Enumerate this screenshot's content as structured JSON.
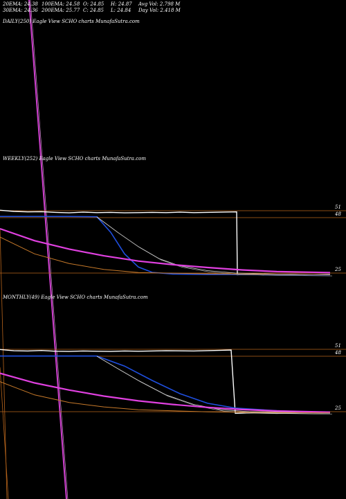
{
  "stats": {
    "ema20": "20EMA: 24.38",
    "ema30": "30EMA: 24.36",
    "ema100": "100EMA: 24.58",
    "ema200": "200EMA: 25.77",
    "open": "O: 24.85",
    "close": "C: 24.85",
    "high": "H: 24.87",
    "low": "L: 24.84",
    "avg_vol": "Avg Vol: 2.798  M",
    "day_vol": "Day Vol: 2.418  M"
  },
  "panels": {
    "daily": "DAILY(250) Eagle  View  SCHO charts MunafaSutra.com",
    "weekly": "WEEKLY(252) Eagle  View  SCHO charts MunafaSutra.com",
    "monthly": "MONTHLY(49) Eagle  View  SCHO charts MunafaSutra.com"
  },
  "colors": {
    "background": "#000000",
    "price": "#ffffff",
    "ema_fast": "#1f4fe0",
    "ema_slow": "#e040e0",
    "ema_orange": "#c87a2a",
    "level_line": "#b8651c",
    "magenta_line": "#d040d0"
  },
  "chart_data": [
    {
      "type": "line",
      "panel": "weekly",
      "title": "WEEKLY(252) Eagle  View  SCHO charts MunafaSutra.com",
      "y_ticks": [
        "51",
        "48",
        "25"
      ],
      "ylim": [
        22,
        58
      ],
      "series": [
        {
          "role": "price",
          "points": [
            [
              0,
              51.2
            ],
            [
              20,
              50.7
            ],
            [
              40,
              50.5
            ],
            [
              60,
              50.6
            ],
            [
              80,
              50.3
            ],
            [
              100,
              50.1
            ],
            [
              120,
              50.4
            ],
            [
              140,
              50.2
            ],
            [
              160,
              50.3
            ],
            [
              180,
              50.1
            ],
            [
              200,
              50.2
            ],
            [
              220,
              50.3
            ],
            [
              240,
              50.2
            ],
            [
              260,
              50.4
            ],
            [
              280,
              50.2
            ],
            [
              300,
              50.3
            ],
            [
              320,
              50.4
            ],
            [
              342,
              50.5
            ],
            [
              343,
              24.3
            ],
            [
              360,
              24.5
            ],
            [
              380,
              24.3
            ],
            [
              400,
              24.4
            ],
            [
              420,
              24.5
            ],
            [
              440,
              24.3
            ],
            [
              460,
              24.4
            ],
            [
              477,
              24.5
            ]
          ]
        },
        {
          "role": "ema_fast",
          "points": [
            [
              0,
              48.6
            ],
            [
              100,
              48.6
            ],
            [
              140,
              48.5
            ],
            [
              160,
              42
            ],
            [
              180,
              33
            ],
            [
              200,
              27.5
            ],
            [
              220,
              25.3
            ],
            [
              250,
              24.6
            ],
            [
              300,
              24.4
            ],
            [
              340,
              24.4
            ],
            [
              400,
              24.3
            ],
            [
              477,
              24.3
            ]
          ]
        },
        {
          "role": "ema_mid",
          "points": [
            [
              140,
              48.4
            ],
            [
              170,
              42
            ],
            [
              200,
              36
            ],
            [
              230,
              31
            ],
            [
              260,
              28
            ],
            [
              300,
              26
            ],
            [
              340,
              25
            ],
            [
              400,
              24.6
            ],
            [
              477,
              24.4
            ]
          ]
        },
        {
          "role": "ema_slow",
          "points": [
            [
              0,
              43.5
            ],
            [
              50,
              38.5
            ],
            [
              100,
              35
            ],
            [
              150,
              32.2
            ],
            [
              200,
              30
            ],
            [
              250,
              28.5
            ],
            [
              300,
              27.3
            ],
            [
              350,
              26.3
            ],
            [
              400,
              25.6
            ],
            [
              477,
              25.2
            ]
          ]
        },
        {
          "role": "ema_orange",
          "points": [
            [
              0,
              40
            ],
            [
              50,
              33
            ],
            [
              100,
              29
            ],
            [
              150,
              26.5
            ],
            [
              200,
              25.2
            ],
            [
              300,
              24.7
            ],
            [
              400,
              24.5
            ],
            [
              477,
              24.4
            ]
          ]
        }
      ]
    },
    {
      "type": "line",
      "panel": "monthly",
      "title": "MONTHLY(49) Eagle  View  SCHO charts MunafaSutra.com",
      "y_ticks": [
        "51",
        "48",
        "25"
      ],
      "ylim": [
        22,
        58
      ],
      "series": [
        {
          "role": "price",
          "points": [
            [
              0,
              50.9
            ],
            [
              20,
              50.4
            ],
            [
              40,
              50.3
            ],
            [
              60,
              50.5
            ],
            [
              80,
              50.2
            ],
            [
              100,
              50.1
            ],
            [
              120,
              50.3
            ],
            [
              140,
              50.2
            ],
            [
              160,
              50.1
            ],
            [
              180,
              50.3
            ],
            [
              200,
              50.2
            ],
            [
              240,
              50.4
            ],
            [
              280,
              50.3
            ],
            [
              320,
              50.6
            ],
            [
              334,
              50.7
            ],
            [
              340,
              24.3
            ],
            [
              360,
              24.5
            ],
            [
              400,
              24.3
            ],
            [
              440,
              24.5
            ],
            [
              477,
              24.4
            ]
          ]
        },
        {
          "role": "ema_fast",
          "points": [
            [
              0,
              48.2
            ],
            [
              140,
              48.2
            ],
            [
              180,
              44
            ],
            [
              220,
              38
            ],
            [
              260,
              32.5
            ],
            [
              300,
              28.5
            ],
            [
              340,
              26.5
            ],
            [
              400,
              25.4
            ],
            [
              477,
              24.5
            ]
          ]
        },
        {
          "role": "ema_mid",
          "points": [
            [
              140,
              48.1
            ],
            [
              170,
              43
            ],
            [
              200,
              38
            ],
            [
              240,
              32
            ],
            [
              280,
              28
            ],
            [
              320,
              25.8
            ],
            [
              360,
              25
            ],
            [
              477,
              24.5
            ]
          ]
        },
        {
          "role": "ema_slow",
          "points": [
            [
              0,
              41
            ],
            [
              50,
              37
            ],
            [
              100,
              34
            ],
            [
              150,
              31.5
            ],
            [
              200,
              29.5
            ],
            [
              250,
              28
            ],
            [
              300,
              26.8
            ],
            [
              350,
              25.9
            ],
            [
              400,
              25.3
            ],
            [
              477,
              24.8
            ]
          ]
        },
        {
          "role": "ema_orange",
          "points": [
            [
              0,
              37.5
            ],
            [
              50,
              32
            ],
            [
              100,
              28.8
            ],
            [
              150,
              27
            ],
            [
              200,
              25.8
            ],
            [
              300,
              24.9
            ],
            [
              400,
              24.6
            ],
            [
              477,
              24.5
            ]
          ]
        }
      ]
    }
  ]
}
